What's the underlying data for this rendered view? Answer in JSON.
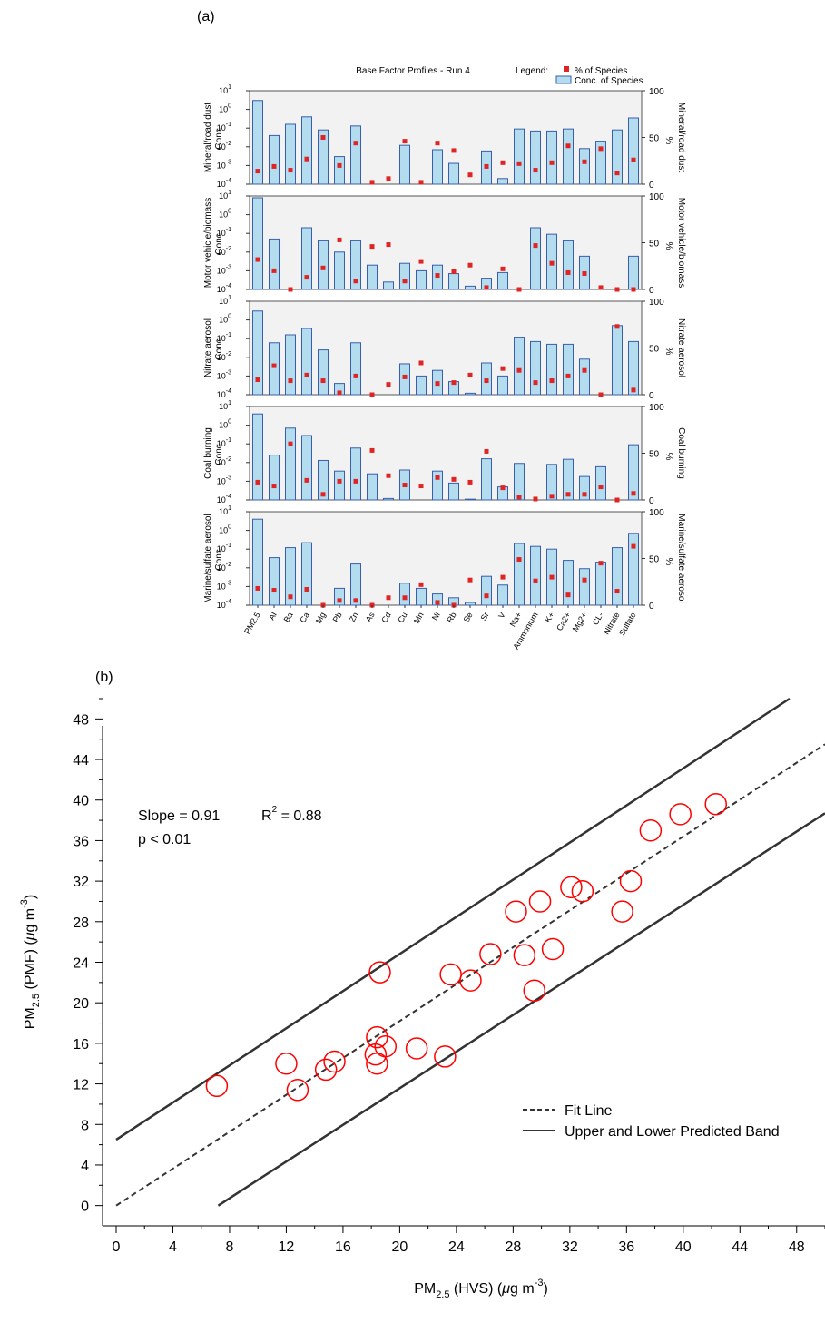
{
  "panel_a_label": "(a)",
  "panel_b_label": "(b)",
  "colors": {
    "bar_fill": "#b3dcef",
    "bar_stroke": "#3a5fa8",
    "marker": "#e02424",
    "panel_bg": "#f2f2f2",
    "circle": "#ff0000",
    "line": "#333333"
  },
  "chart_data": [
    {
      "type": "bar",
      "title": "Base Factor Profiles - Run 4",
      "legend": {
        "title": "Legend:",
        "entries": [
          "% of Species",
          "Conc. of Species"
        ],
        "placement": "top-right"
      },
      "categories": [
        "PM2.5",
        "Al",
        "Ba",
        "Ca",
        "Mg",
        "Pb",
        "Zn",
        "As",
        "Cd",
        "Cu",
        "Mn",
        "Ni",
        "Rb",
        "Se",
        "Sr",
        "V",
        "Na+",
        "Ammonium",
        "K+",
        "Ca2+",
        "Mg2+",
        "CL-",
        "Nitrate",
        "Sulfate"
      ],
      "left_axis": {
        "scale": "log",
        "range": [
          0.0001,
          10
        ],
        "ticks": [
          "10-4",
          "10-3",
          "10-2",
          "10-1",
          "100",
          "101"
        ]
      },
      "right_axis": {
        "range": [
          0,
          100
        ],
        "ticks": [
          "0",
          "50",
          "100"
        ],
        "unit": "%"
      },
      "factors": [
        {
          "name": "Mineral/road dust",
          "left_label": "Conc.",
          "conc": [
            3,
            0.04,
            0.16,
            0.4,
            0.08,
            0.003,
            0.13,
            null,
            null,
            0.012,
            null,
            0.007,
            0.0013,
            null,
            0.006,
            0.0002,
            0.09,
            0.07,
            0.07,
            0.09,
            0.008,
            0.02,
            0.08,
            0.35
          ],
          "percent": [
            14,
            19,
            15,
            27,
            50,
            20,
            44,
            2,
            6,
            46,
            2,
            44,
            36,
            10,
            19,
            23,
            22,
            15,
            23,
            41,
            24,
            38,
            12,
            26
          ]
        },
        {
          "name": "Motor vehicle/biomass",
          "left_label": "Conc.",
          "conc": [
            8,
            0.05,
            null,
            0.2,
            0.04,
            0.01,
            0.04,
            0.002,
            0.00025,
            0.0025,
            0.001,
            0.002,
            0.0007,
            0.00015,
            0.0004,
            0.0008,
            null,
            0.2,
            0.09,
            0.04,
            0.006,
            null,
            null,
            0.006
          ],
          "percent": [
            32,
            20,
            0,
            13,
            23,
            53,
            9,
            46,
            48,
            9,
            30,
            15,
            19,
            26,
            2,
            22,
            0,
            47,
            28,
            18,
            17,
            2,
            0,
            0
          ]
        },
        {
          "name": "Nitrate aerosol",
          "left_label": "Conc.",
          "conc": [
            3,
            0.06,
            0.16,
            0.35,
            0.025,
            0.0004,
            0.06,
            null,
            null,
            0.0045,
            0.001,
            0.002,
            0.0005,
            0.00012,
            0.005,
            0.001,
            0.12,
            0.07,
            0.05,
            0.05,
            0.008,
            null,
            0.5,
            0.07
          ],
          "percent": [
            16,
            31,
            15,
            21,
            15,
            2,
            20,
            0,
            11,
            19,
            34,
            12,
            13,
            21,
            15,
            28,
            26,
            13,
            15,
            20,
            26,
            0,
            73,
            5
          ]
        },
        {
          "name": "Coal burning",
          "left_label": "Conc.",
          "conc": [
            4,
            0.025,
            0.7,
            0.28,
            0.013,
            0.0035,
            0.06,
            0.0025,
            0.00012,
            0.004,
            null,
            0.0035,
            0.0008,
            0.00011,
            0.016,
            0.0005,
            0.009,
            null,
            0.008,
            0.015,
            0.0018,
            0.006,
            null,
            0.09
          ],
          "percent": [
            19,
            15,
            60,
            21,
            6,
            20,
            20,
            53,
            26,
            16,
            15,
            24,
            22,
            19,
            52,
            13,
            3,
            1,
            4,
            6,
            6,
            14,
            0,
            7
          ]
        },
        {
          "name": "Marine/sulfate aerosol",
          "left_label": "Conc.",
          "conc": [
            4,
            0.035,
            0.12,
            0.22,
            null,
            0.0008,
            0.016,
            null,
            null,
            0.0015,
            0.0008,
            0.0004,
            0.00025,
            0.00014,
            0.0035,
            0.0012,
            0.2,
            0.14,
            0.1,
            0.025,
            0.009,
            0.02,
            0.12,
            0.7
          ],
          "percent": [
            18,
            16,
            9,
            17,
            0,
            5,
            5,
            0,
            8,
            8,
            22,
            3,
            0,
            27,
            10,
            30,
            49,
            26,
            30,
            11,
            27,
            45,
            15,
            63
          ]
        }
      ]
    },
    {
      "type": "scatter",
      "xlabel": "PM2.5 (HVS) (μg m-3)",
      "ylabel": "PM2.5 (PMF) (μg m-3)",
      "xlim": [
        0,
        50
      ],
      "ylim": [
        -2,
        50
      ],
      "xticks": [
        0,
        4,
        8,
        12,
        16,
        20,
        24,
        28,
        32,
        36,
        40,
        44,
        48
      ],
      "yticks": [
        0,
        4,
        8,
        12,
        16,
        20,
        24,
        28,
        32,
        36,
        40,
        44,
        48
      ],
      "annotations": {
        "slope_text": "Slope = 0.91",
        "r2_text": "R",
        "r2_value": " = 0.88",
        "r2_exp": "2",
        "p_text": "p < 0.01"
      },
      "points": [
        [
          7.1,
          11.8
        ],
        [
          12.0,
          14.0
        ],
        [
          12.8,
          11.4
        ],
        [
          14.8,
          13.4
        ],
        [
          15.4,
          14.2
        ],
        [
          18.3,
          14.9
        ],
        [
          18.4,
          14.0
        ],
        [
          18.4,
          16.6
        ],
        [
          19.0,
          15.7
        ],
        [
          18.6,
          23.0
        ],
        [
          21.2,
          15.5
        ],
        [
          23.2,
          14.7
        ],
        [
          23.6,
          22.8
        ],
        [
          25.0,
          22.2
        ],
        [
          26.4,
          24.8
        ],
        [
          28.2,
          29.0
        ],
        [
          28.8,
          24.7
        ],
        [
          29.5,
          21.2
        ],
        [
          29.9,
          30.0
        ],
        [
          30.8,
          25.3
        ],
        [
          32.1,
          31.4
        ],
        [
          32.9,
          31.0
        ],
        [
          35.7,
          29.0
        ],
        [
          36.3,
          32.0
        ],
        [
          37.7,
          37.0
        ],
        [
          39.8,
          38.6
        ],
        [
          42.3,
          39.6
        ]
      ],
      "fit_line": {
        "name": "Fit Line",
        "slope": 0.91,
        "intercept": 0
      },
      "band": {
        "name": "Upper and Lower Predicted Band",
        "upper": [
          [
            0,
            6.5
          ],
          [
            47.5,
            50
          ]
        ],
        "lower": [
          [
            7.2,
            0
          ],
          [
            50,
            38.7
          ]
        ]
      }
    }
  ]
}
